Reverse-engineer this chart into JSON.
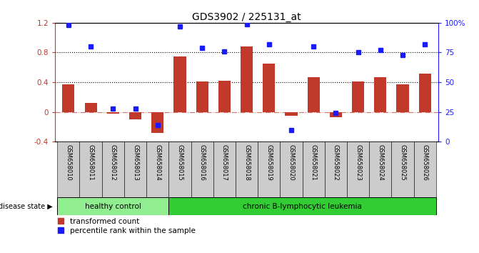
{
  "title": "GDS3902 / 225131_at",
  "samples": [
    "GSM658010",
    "GSM658011",
    "GSM658012",
    "GSM658013",
    "GSM658014",
    "GSM658015",
    "GSM658016",
    "GSM658017",
    "GSM658018",
    "GSM658019",
    "GSM658020",
    "GSM658021",
    "GSM658022",
    "GSM658023",
    "GSM658024",
    "GSM658025",
    "GSM658026"
  ],
  "bar_values": [
    0.37,
    0.12,
    -0.02,
    -0.1,
    -0.28,
    0.75,
    0.41,
    0.42,
    0.88,
    0.65,
    -0.05,
    0.47,
    -0.07,
    0.41,
    0.47,
    0.37,
    0.52
  ],
  "percentile_values": [
    98,
    80,
    28,
    28,
    14,
    97,
    79,
    76,
    99,
    82,
    10,
    80,
    24,
    75,
    77,
    73,
    82
  ],
  "bar_color": "#C0392B",
  "dot_color": "#1a1aff",
  "ylim_left": [
    -0.4,
    1.2
  ],
  "ylim_right": [
    0,
    100
  ],
  "hlines": [
    0.8,
    0.4
  ],
  "healthy_control_count": 5,
  "group1_label": "healthy control",
  "group2_label": "chronic B-lymphocytic leukemia",
  "legend1": "transformed count",
  "legend2": "percentile rank within the sample",
  "background_color": "#ffffff",
  "group1_color": "#90EE90",
  "group2_color": "#32CD32",
  "title_fontsize": 10,
  "label_area_color": "#cccccc"
}
